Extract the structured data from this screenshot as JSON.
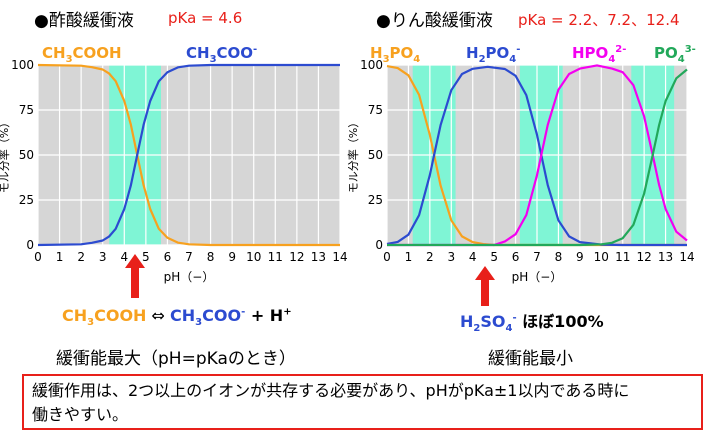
{
  "colors": {
    "acid": "#f7a11f",
    "base": "#2c4bd0",
    "hpo4": "#f400f0",
    "po4": "#22a85a",
    "buffer_band": "#7ff5d5",
    "plot_bg": "#d6d6d6",
    "accent_red": "#e8201a"
  },
  "left_panel": {
    "title": "●酢酸緩衝液",
    "pka_label": "pKa = 4.6",
    "series_labels": {
      "acid_main": "CH",
      "acid_sub": "3",
      "acid_tail": "COOH",
      "base_main": "CH",
      "base_sub": "3",
      "base_tail": "COO",
      "base_sup": "-"
    },
    "equation": {
      "left_main": "CH",
      "left_sub": "3",
      "left_tail": "COOH",
      "arrow": " ⇔ ",
      "right_main": "CH",
      "right_sub": "3",
      "right_tail": "COO",
      "right_sup": "-",
      "plus": " + H",
      "plus_sup": "+"
    },
    "caption": "緩衝能最大（pH=pKaのとき）"
  },
  "right_panel": {
    "title": "●りん酸緩衝液",
    "pka_label": "pKa = 2.2、7.2、12.4",
    "series_labels": {
      "h3po4_a": "H",
      "h3po4_b": "3",
      "h3po4_c": "PO",
      "h3po4_d": "4",
      "h2po4_a": "H",
      "h2po4_b": "2",
      "h2po4_c": "PO",
      "h2po4_d": "4",
      "h2po4_sup": "-",
      "hpo4_a": "HPO",
      "hpo4_b": "4",
      "hpo4_sup": "2-",
      "po4_a": "PO",
      "po4_b": "4",
      "po4_sup": "3-"
    },
    "equation": {
      "main": "H",
      "sub1": "2",
      "mid": "SO",
      "sub2": "4",
      "sup": "-",
      "tail": " ほぼ100%"
    },
    "caption": "緩衝能最小"
  },
  "note": {
    "line1": "緩衝作用は、2つ以上のイオンが共存する必要があり、pHがpKa±1以内である時に",
    "line2": "働きやすい。"
  },
  "chart_data": [
    {
      "type": "line",
      "title": "",
      "xlabel": "pH（−）",
      "ylabel": "モル分率（%）",
      "xlim": [
        0,
        14
      ],
      "ylim": [
        0,
        100
      ],
      "xticks": [
        0,
        1,
        2,
        3,
        4,
        5,
        6,
        7,
        8,
        9,
        10,
        11,
        12,
        13,
        14
      ],
      "yticks": [
        0,
        25,
        50,
        75,
        100
      ],
      "grid": true,
      "buffer_bands": [
        [
          3.3,
          5.7
        ]
      ],
      "marker_ph": 4.6,
      "pKa": [
        4.6
      ],
      "series": [
        {
          "name": "CH3COOH",
          "color": "#f7a11f",
          "x": [
            0,
            2,
            2.5,
            3,
            3.3,
            3.6,
            4,
            4.3,
            4.6,
            4.9,
            5.2,
            5.6,
            6,
            6.5,
            7,
            8,
            10,
            14
          ],
          "y": [
            100,
            99.6,
            98.8,
            97.5,
            95.2,
            91,
            80,
            67,
            50,
            33,
            20,
            9,
            4,
            1.3,
            0.4,
            0,
            0,
            0
          ]
        },
        {
          "name": "CH3COO-",
          "color": "#2c4bd0",
          "x": [
            0,
            2,
            2.5,
            3,
            3.3,
            3.6,
            4,
            4.3,
            4.6,
            4.9,
            5.2,
            5.6,
            6,
            6.5,
            7,
            8,
            10,
            14
          ],
          "y": [
            0,
            0.4,
            1.2,
            2.5,
            4.8,
            9,
            20,
            33,
            50,
            67,
            80,
            91,
            96,
            98.7,
            99.6,
            100,
            100,
            100
          ]
        }
      ]
    },
    {
      "type": "line",
      "title": "",
      "xlabel": "pH（−）",
      "ylabel": "モル分率（%）",
      "xlim": [
        0,
        14
      ],
      "ylim": [
        0,
        100
      ],
      "xticks": [
        0,
        1,
        2,
        3,
        4,
        5,
        6,
        7,
        8,
        9,
        10,
        11,
        12,
        13,
        14
      ],
      "yticks": [
        0,
        25,
        50,
        75,
        100
      ],
      "grid": true,
      "buffer_bands": [
        [
          1.2,
          3.2
        ],
        [
          6.2,
          8.2
        ],
        [
          11.4,
          13.4
        ]
      ],
      "marker_ph": 4.7,
      "pKa": [
        2.2,
        7.2,
        12.4
      ],
      "series": [
        {
          "name": "H3PO4",
          "color": "#f7a11f",
          "x": [
            0,
            0.5,
            1,
            1.5,
            2,
            2.2,
            2.5,
            3,
            3.5,
            4,
            4.5,
            5,
            14
          ],
          "y": [
            99.4,
            98.3,
            94.3,
            83.4,
            61,
            50,
            33,
            13.7,
            4.8,
            1.6,
            0.5,
            0,
            0
          ]
        },
        {
          "name": "H2PO4-",
          "color": "#2c4bd0",
          "x": [
            0,
            0.5,
            1,
            1.5,
            2,
            2.2,
            2.5,
            3,
            3.5,
            4,
            4.7,
            5.5,
            6,
            6.5,
            7,
            7.2,
            7.5,
            8,
            8.5,
            9,
            10,
            11,
            14
          ],
          "y": [
            0.6,
            1.7,
            5.7,
            16.6,
            39,
            50,
            66.6,
            86,
            95,
            97.9,
            99,
            97.8,
            94,
            83.3,
            61.2,
            50,
            33.4,
            13.7,
            4.8,
            1.6,
            0.2,
            0,
            0
          ]
        },
        {
          "name": "HPO4 2-",
          "color": "#f400f0",
          "x": [
            0,
            5,
            5.5,
            6,
            6.5,
            7,
            7.2,
            7.5,
            8,
            8.5,
            9,
            9.8,
            10.5,
            11,
            11.5,
            12,
            12.4,
            12.7,
            13,
            13.5,
            14
          ],
          "y": [
            0,
            0,
            2,
            6,
            16.6,
            38.8,
            50,
            66.6,
            86.3,
            95,
            98,
            99.8,
            98,
            96,
            88.8,
            71.5,
            50,
            33.4,
            20,
            7.4,
            2.5
          ]
        },
        {
          "name": "PO4 3-",
          "color": "#22a85a",
          "x": [
            0,
            9,
            10,
            10.5,
            11,
            11.5,
            12,
            12.4,
            12.7,
            13,
            13.5,
            14
          ],
          "y": [
            0,
            0,
            0.4,
            1.2,
            3.8,
            11.2,
            28.5,
            50,
            66.6,
            80,
            92.6,
            97.5
          ]
        }
      ]
    }
  ]
}
